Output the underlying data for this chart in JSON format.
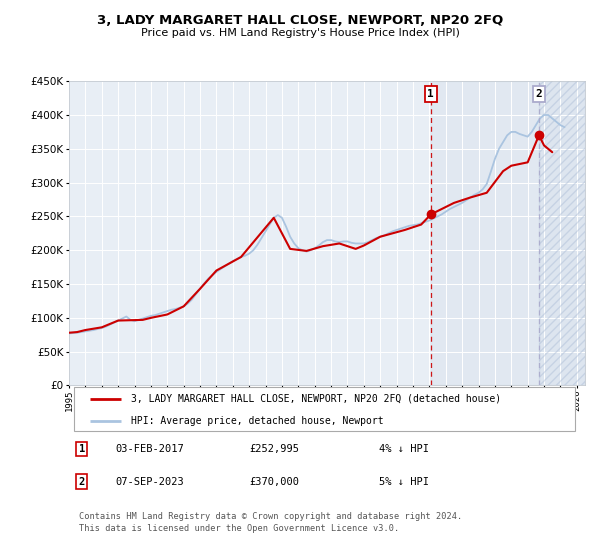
{
  "title": "3, LADY MARGARET HALL CLOSE, NEWPORT, NP20 2FQ",
  "subtitle": "Price paid vs. HM Land Registry's House Price Index (HPI)",
  "legend_line1": "3, LADY MARGARET HALL CLOSE, NEWPORT, NP20 2FQ (detached house)",
  "legend_line2": "HPI: Average price, detached house, Newport",
  "annotation1_date": "03-FEB-2017",
  "annotation1_price": "£252,995",
  "annotation1_hpi": "4% ↓ HPI",
  "annotation2_date": "07-SEP-2023",
  "annotation2_price": "£370,000",
  "annotation2_hpi": "5% ↓ HPI",
  "footer": "Contains HM Land Registry data © Crown copyright and database right 2024.\nThis data is licensed under the Open Government Licence v3.0.",
  "hpi_color": "#aac4e0",
  "price_color": "#cc0000",
  "marker_color": "#cc0000",
  "vline1_color": "#cc0000",
  "vline2_color": "#aaaacc",
  "plot_bg_color": "#e8eef5",
  "shade2_color": "#dde5f0",
  "ylim": [
    0,
    450000
  ],
  "xlim_start": 1995.0,
  "xlim_end": 2026.5,
  "yticks": [
    0,
    50000,
    100000,
    150000,
    200000,
    250000,
    300000,
    350000,
    400000,
    450000
  ],
  "xticks": [
    1995,
    1996,
    1997,
    1998,
    1999,
    2000,
    2001,
    2002,
    2003,
    2004,
    2005,
    2006,
    2007,
    2008,
    2009,
    2010,
    2011,
    2012,
    2013,
    2014,
    2015,
    2016,
    2017,
    2018,
    2019,
    2020,
    2021,
    2022,
    2023,
    2024,
    2025,
    2026
  ],
  "vline1_x": 2017.09,
  "vline2_x": 2023.69,
  "sale1_x": 2017.09,
  "sale1_y": 252995,
  "sale2_x": 2023.69,
  "sale2_y": 370000,
  "hpi_x": [
    1995.0,
    1995.25,
    1995.5,
    1995.75,
    1996.0,
    1996.25,
    1996.5,
    1996.75,
    1997.0,
    1997.25,
    1997.5,
    1997.75,
    1998.0,
    1998.25,
    1998.5,
    1998.75,
    1999.0,
    1999.25,
    1999.5,
    1999.75,
    2000.0,
    2000.25,
    2000.5,
    2000.75,
    2001.0,
    2001.25,
    2001.5,
    2001.75,
    2002.0,
    2002.25,
    2002.5,
    2002.75,
    2003.0,
    2003.25,
    2003.5,
    2003.75,
    2004.0,
    2004.25,
    2004.5,
    2004.75,
    2005.0,
    2005.25,
    2005.5,
    2005.75,
    2006.0,
    2006.25,
    2006.5,
    2006.75,
    2007.0,
    2007.25,
    2007.5,
    2007.75,
    2008.0,
    2008.25,
    2008.5,
    2008.75,
    2009.0,
    2009.25,
    2009.5,
    2009.75,
    2010.0,
    2010.25,
    2010.5,
    2010.75,
    2011.0,
    2011.25,
    2011.5,
    2011.75,
    2012.0,
    2012.25,
    2012.5,
    2012.75,
    2013.0,
    2013.25,
    2013.5,
    2013.75,
    2014.0,
    2014.25,
    2014.5,
    2014.75,
    2015.0,
    2015.25,
    2015.5,
    2015.75,
    2016.0,
    2016.25,
    2016.5,
    2016.75,
    2017.0,
    2017.25,
    2017.5,
    2017.75,
    2018.0,
    2018.25,
    2018.5,
    2018.75,
    2019.0,
    2019.25,
    2019.5,
    2019.75,
    2020.0,
    2020.25,
    2020.5,
    2020.75,
    2021.0,
    2021.25,
    2021.5,
    2021.75,
    2022.0,
    2022.25,
    2022.5,
    2022.75,
    2023.0,
    2023.25,
    2023.5,
    2023.75,
    2024.0,
    2024.25,
    2024.5,
    2024.75,
    2025.0,
    2025.25
  ],
  "hpi_y": [
    77000,
    77500,
    78000,
    79000,
    80000,
    81000,
    82000,
    83500,
    85000,
    87000,
    90000,
    93000,
    96000,
    99000,
    102000,
    97000,
    95000,
    97000,
    99000,
    101000,
    103000,
    104000,
    106000,
    108000,
    110000,
    112000,
    113000,
    115000,
    117000,
    121000,
    127000,
    135000,
    143000,
    151000,
    158000,
    163000,
    168000,
    172000,
    176000,
    180000,
    184000,
    187000,
    190000,
    192000,
    195000,
    200000,
    208000,
    218000,
    228000,
    238000,
    248000,
    252000,
    248000,
    235000,
    220000,
    210000,
    203000,
    200000,
    198000,
    200000,
    203000,
    207000,
    212000,
    215000,
    215000,
    213000,
    212000,
    213000,
    213000,
    211000,
    210000,
    210000,
    210000,
    212000,
    215000,
    218000,
    220000,
    222000,
    225000,
    228000,
    230000,
    232000,
    234000,
    236000,
    237000,
    238000,
    240000,
    242000,
    244000,
    247000,
    250000,
    253000,
    257000,
    261000,
    264000,
    267000,
    270000,
    274000,
    278000,
    282000,
    285000,
    290000,
    298000,
    316000,
    335000,
    350000,
    360000,
    370000,
    375000,
    375000,
    372000,
    370000,
    368000,
    375000,
    385000,
    395000,
    400000,
    400000,
    395000,
    390000,
    385000,
    382000
  ],
  "price_x": [
    1995.0,
    1995.5,
    1996.0,
    1997.0,
    1998.0,
    1999.5,
    2000.0,
    2001.0,
    2002.0,
    2003.0,
    2004.0,
    2005.5,
    2007.5,
    2008.5,
    2009.5,
    2010.5,
    2011.5,
    2012.5,
    2013.0,
    2014.0,
    2015.5,
    2016.5,
    2017.09,
    2018.5,
    2019.5,
    2020.5,
    2021.5,
    2022.0,
    2023.0,
    2023.69,
    2024.0,
    2024.5
  ],
  "price_y": [
    78000,
    79000,
    82000,
    86000,
    96000,
    97000,
    100000,
    105000,
    117000,
    143000,
    170000,
    190000,
    248000,
    202000,
    199000,
    206000,
    210000,
    202000,
    207000,
    220000,
    230000,
    238000,
    252995,
    270000,
    278000,
    285000,
    317000,
    325000,
    330000,
    370000,
    355000,
    345000
  ]
}
